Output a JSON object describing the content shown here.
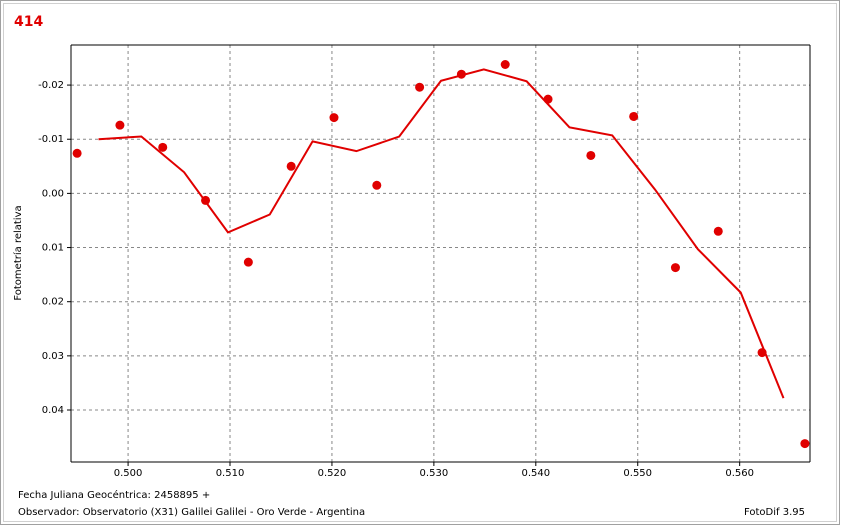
{
  "chart_data": {
    "type": "scatter",
    "title": "414",
    "ylabel": "Fotometría relativa",
    "footer_left_1": "Fecha Juliana Geocéntrica: 2458895 +",
    "footer_left_2": "Observador: Observatorio (X31) Galilei Galilei - Oro Verde - Argentina",
    "footer_right": "FotoDif 3.95",
    "xlim": [
      0.4944,
      0.5669
    ],
    "ylim": [
      -0.0274,
      0.0496
    ],
    "y_inverted": true,
    "grid": true,
    "xticks": [
      {
        "value": 0.5,
        "label": "0.500"
      },
      {
        "value": 0.51,
        "label": "0.510"
      },
      {
        "value": 0.52,
        "label": "0.520"
      },
      {
        "value": 0.53,
        "label": "0.530"
      },
      {
        "value": 0.54,
        "label": "0.540"
      },
      {
        "value": 0.55,
        "label": "0.550"
      },
      {
        "value": 0.56,
        "label": "0.560"
      }
    ],
    "yticks": [
      -0.02,
      -0.01,
      {
        "value": 0,
        "label": "0.00"
      },
      0.01,
      0.02,
      0.03,
      0.04
    ],
    "series": [
      {
        "mode": "markers",
        "color": "#e00000",
        "x": [
          0.495,
          0.4992,
          0.5034,
          0.5076,
          0.5118,
          0.516,
          0.5202,
          0.5244,
          0.5286,
          0.5327,
          0.537,
          0.5412,
          0.5454,
          0.5496,
          0.5537,
          0.5579,
          0.5622,
          0.5664
        ],
        "values": [
          -0.0074,
          -0.0126,
          -0.0085,
          0.0013,
          0.0127,
          -0.005,
          -0.014,
          -0.0015,
          -0.0196,
          -0.022,
          -0.0238,
          -0.0174,
          -0.007,
          -0.0142,
          0.0137,
          0.007,
          0.0294,
          0.0462
        ]
      },
      {
        "mode": "line",
        "color": "#e00000",
        "x": [
          0.4971,
          0.5013,
          0.5055,
          0.5098,
          0.5139,
          0.5181,
          0.5224,
          0.5266,
          0.5307,
          0.5349,
          0.5391,
          0.5433,
          0.5475,
          0.5517,
          0.5559,
          0.5601,
          0.5643
        ],
        "values": [
          -0.01,
          -0.0105,
          -0.0039,
          0.0072,
          0.0039,
          -0.0096,
          -0.0078,
          -0.0105,
          -0.0208,
          -0.0229,
          -0.0207,
          -0.0122,
          -0.0107,
          -0.0007,
          0.0103,
          0.0183,
          0.0378
        ]
      }
    ]
  }
}
